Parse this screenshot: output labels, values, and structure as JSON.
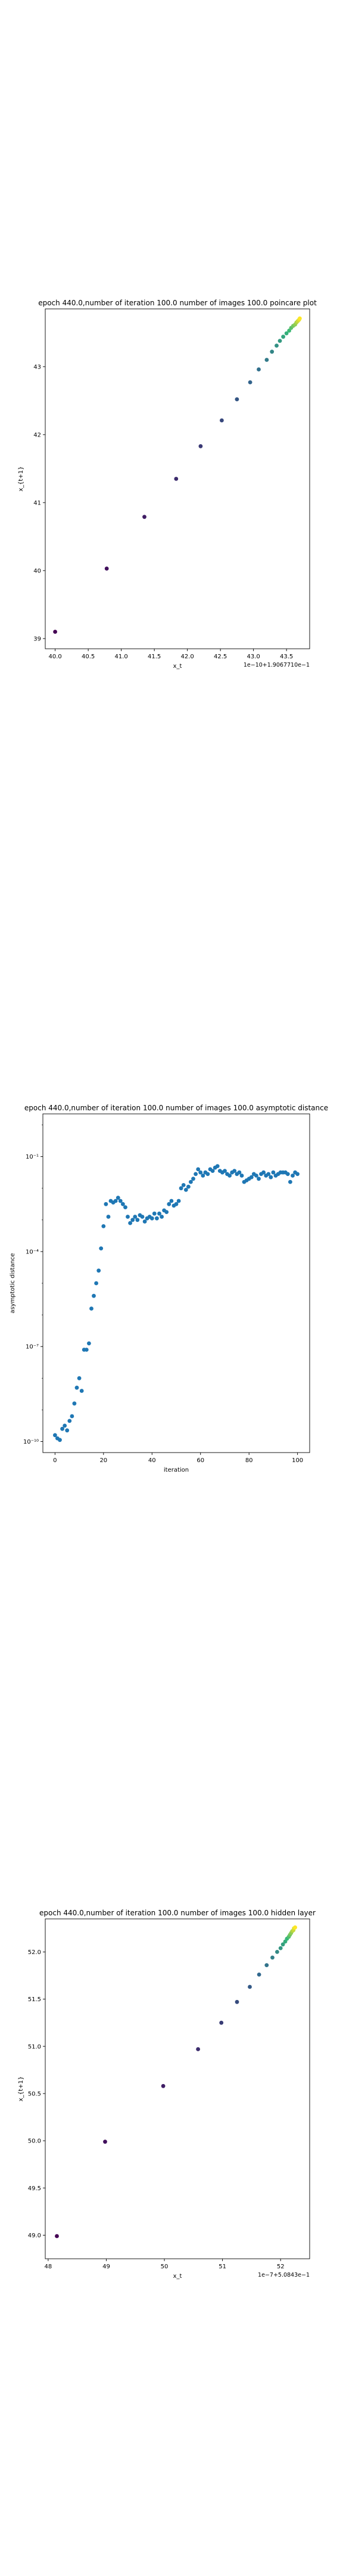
{
  "chart_data": [
    {
      "type": "scatter",
      "title": "epoch 440.0,number of iteration 100.0 number of images 100.0 poincare plot",
      "xlabel": "x_t",
      "ylabel": "x_{t+1}",
      "offset_text": "1e−10+1.9067710e−1",
      "xlim": [
        39.85,
        43.85
      ],
      "ylim": [
        38.85,
        43.85
      ],
      "x_ticks": [
        40.0,
        40.5,
        41.0,
        41.5,
        42.0,
        42.5,
        43.0,
        43.5
      ],
      "x_tick_labels": [
        "40.0",
        "40.5",
        "41.0",
        "41.5",
        "42.0",
        "42.5",
        "43.0",
        "43.5"
      ],
      "y_ticks": [
        39,
        40,
        41,
        42,
        43
      ],
      "y_tick_labels": [
        "39",
        "40",
        "41",
        "42",
        "43"
      ],
      "points": [
        [
          40.0,
          39.1
        ],
        [
          40.78,
          40.03
        ],
        [
          41.35,
          40.79
        ],
        [
          41.83,
          41.35
        ],
        [
          42.2,
          41.83
        ],
        [
          42.52,
          42.21
        ],
        [
          42.75,
          42.52
        ],
        [
          42.95,
          42.77
        ],
        [
          43.08,
          42.96
        ],
        [
          43.2,
          43.1
        ],
        [
          43.28,
          43.22
        ],
        [
          43.35,
          43.31
        ],
        [
          43.4,
          43.38
        ],
        [
          43.45,
          43.44
        ],
        [
          43.5,
          43.49
        ],
        [
          43.54,
          43.53
        ],
        [
          43.57,
          43.57
        ],
        [
          43.6,
          43.6
        ],
        [
          43.63,
          43.62
        ],
        [
          43.65,
          43.65
        ],
        [
          43.67,
          43.67
        ],
        [
          43.69,
          43.69
        ],
        [
          43.7,
          43.71
        ]
      ],
      "colors": [
        "#440154",
        "#31688e",
        "#35b779",
        "#fde725"
      ]
    },
    {
      "type": "scatter",
      "title": "epoch 440.0,number of iteration 100.0  number of images 100.0 asymptotic distance",
      "xlabel": "iteration",
      "ylabel": "asymptotic distance",
      "yscale": "log",
      "xlim": [
        -5,
        105
      ],
      "ylim_exp": [
        -10.35,
        0.35
      ],
      "x_ticks": [
        0,
        20,
        40,
        60,
        80,
        100
      ],
      "x_tick_labels": [
        "0",
        "20",
        "40",
        "60",
        "80",
        "100"
      ],
      "y_ticks_exp": [
        -10,
        -7,
        -4,
        -1
      ],
      "y_tick_labels": [
        "10⁻¹⁰",
        "10⁻⁷",
        "10⁻⁴",
        "10⁻¹"
      ],
      "color": "#1f77b4",
      "x": [
        0,
        1,
        2,
        3,
        4,
        5,
        6,
        7,
        8,
        9,
        10,
        11,
        12,
        13,
        14,
        15,
        16,
        17,
        18,
        19,
        20,
        21,
        22,
        23,
        24,
        25,
        26,
        27,
        28,
        29,
        30,
        31,
        32,
        33,
        34,
        35,
        36,
        37,
        38,
        39,
        40,
        41,
        42,
        43,
        44,
        45,
        46,
        47,
        48,
        49,
        50,
        51,
        52,
        53,
        54,
        55,
        56,
        57,
        58,
        59,
        60,
        61,
        62,
        63,
        64,
        65,
        66,
        67,
        68,
        69,
        70,
        71,
        72,
        73,
        74,
        75,
        76,
        77,
        78,
        79,
        80,
        81,
        82,
        83,
        84,
        85,
        86,
        87,
        88,
        89,
        90,
        91,
        92,
        93,
        94,
        95,
        96,
        97,
        98,
        99,
        100
      ],
      "y_log10": [
        -9.8,
        -9.9,
        -9.95,
        -9.6,
        -9.5,
        -9.65,
        -9.35,
        -9.2,
        -8.8,
        -8.3,
        -8.0,
        -8.4,
        -7.1,
        -7.1,
        -6.9,
        -5.8,
        -5.4,
        -5.0,
        -4.6,
        -3.9,
        -3.2,
        -2.5,
        -2.9,
        -2.4,
        -2.45,
        -2.4,
        -2.3,
        -2.4,
        -2.5,
        -2.6,
        -2.9,
        -3.1,
        -3.0,
        -2.9,
        -3.0,
        -2.85,
        -2.9,
        -3.05,
        -2.95,
        -2.9,
        -2.95,
        -2.8,
        -2.95,
        -2.8,
        -2.9,
        -2.7,
        -2.75,
        -2.5,
        -2.4,
        -2.55,
        -2.5,
        -2.4,
        -2.0,
        -1.9,
        -2.05,
        -1.95,
        -1.8,
        -1.7,
        -1.55,
        -1.4,
        -1.5,
        -1.6,
        -1.5,
        -1.55,
        -1.4,
        -1.45,
        -1.35,
        -1.3,
        -1.45,
        -1.5,
        -1.45,
        -1.55,
        -1.6,
        -1.5,
        -1.45,
        -1.55,
        -1.5,
        -1.6,
        -1.8,
        -1.75,
        -1.7,
        -1.65,
        -1.55,
        -1.6,
        -1.7,
        -1.55,
        -1.5,
        -1.6,
        -1.55,
        -1.65,
        -1.5,
        -1.6,
        -1.55,
        -1.5,
        -1.5,
        -1.5,
        -1.55,
        -1.8,
        -1.6,
        -1.5,
        -1.55
      ]
    },
    {
      "type": "scatter",
      "title": "epoch 440.0,number of iteration 100.0  number of images 100.0 hidden layer",
      "xlabel": "x_t",
      "ylabel": "x_{t+1}",
      "offset_text": "1e−7+5.0843e−1",
      "xlim": [
        47.95,
        52.5
      ],
      "ylim": [
        48.75,
        52.35
      ],
      "x_ticks": [
        48,
        49,
        50,
        51,
        52
      ],
      "x_tick_labels": [
        "48",
        "49",
        "50",
        "51",
        "52"
      ],
      "y_ticks": [
        49.0,
        49.5,
        50.0,
        50.5,
        51.0,
        51.5,
        52.0
      ],
      "y_tick_labels": [
        "49.0",
        "49.5",
        "50.0",
        "50.5",
        "51.0",
        "51.5",
        "52.0"
      ],
      "points": [
        [
          48.15,
          48.99
        ],
        [
          48.98,
          49.99
        ],
        [
          49.98,
          50.58
        ],
        [
          50.58,
          50.97
        ],
        [
          50.98,
          51.25
        ],
        [
          51.25,
          51.47
        ],
        [
          51.47,
          51.63
        ],
        [
          51.63,
          51.76
        ],
        [
          51.76,
          51.86
        ],
        [
          51.86,
          51.94
        ],
        [
          51.94,
          52.0
        ],
        [
          52.0,
          52.04
        ],
        [
          52.04,
          52.08
        ],
        [
          52.08,
          52.11
        ],
        [
          52.11,
          52.14
        ],
        [
          52.14,
          52.16
        ],
        [
          52.16,
          52.18
        ],
        [
          52.18,
          52.2
        ],
        [
          52.2,
          52.22
        ],
        [
          52.22,
          52.23
        ],
        [
          52.23,
          52.25
        ],
        [
          52.25,
          52.26
        ]
      ],
      "colors": [
        "#440154",
        "#31688e",
        "#35b779",
        "#fde725"
      ]
    }
  ]
}
